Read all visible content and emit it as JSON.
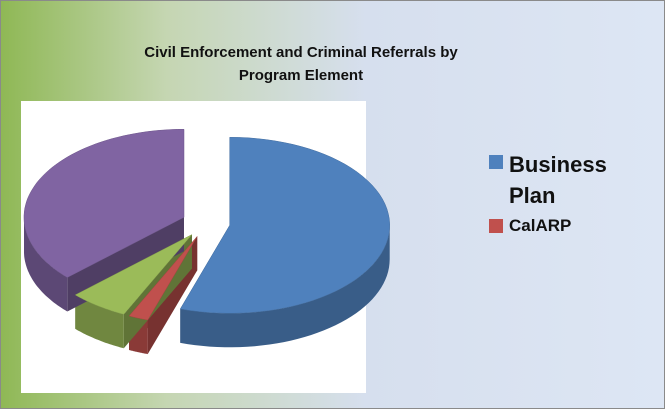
{
  "chart_data": {
    "type": "pie",
    "title": "Civil Enforcement and Criminal Referrals by Program Element",
    "categories": [
      "Business Plan",
      "CalARP",
      null,
      null
    ],
    "values": [
      55,
      2,
      6,
      37
    ],
    "colors": [
      "#4f81bd",
      "#c0504d",
      "#9bbb59",
      "#8064a2"
    ],
    "three_d": true,
    "exploded": true
  }
}
